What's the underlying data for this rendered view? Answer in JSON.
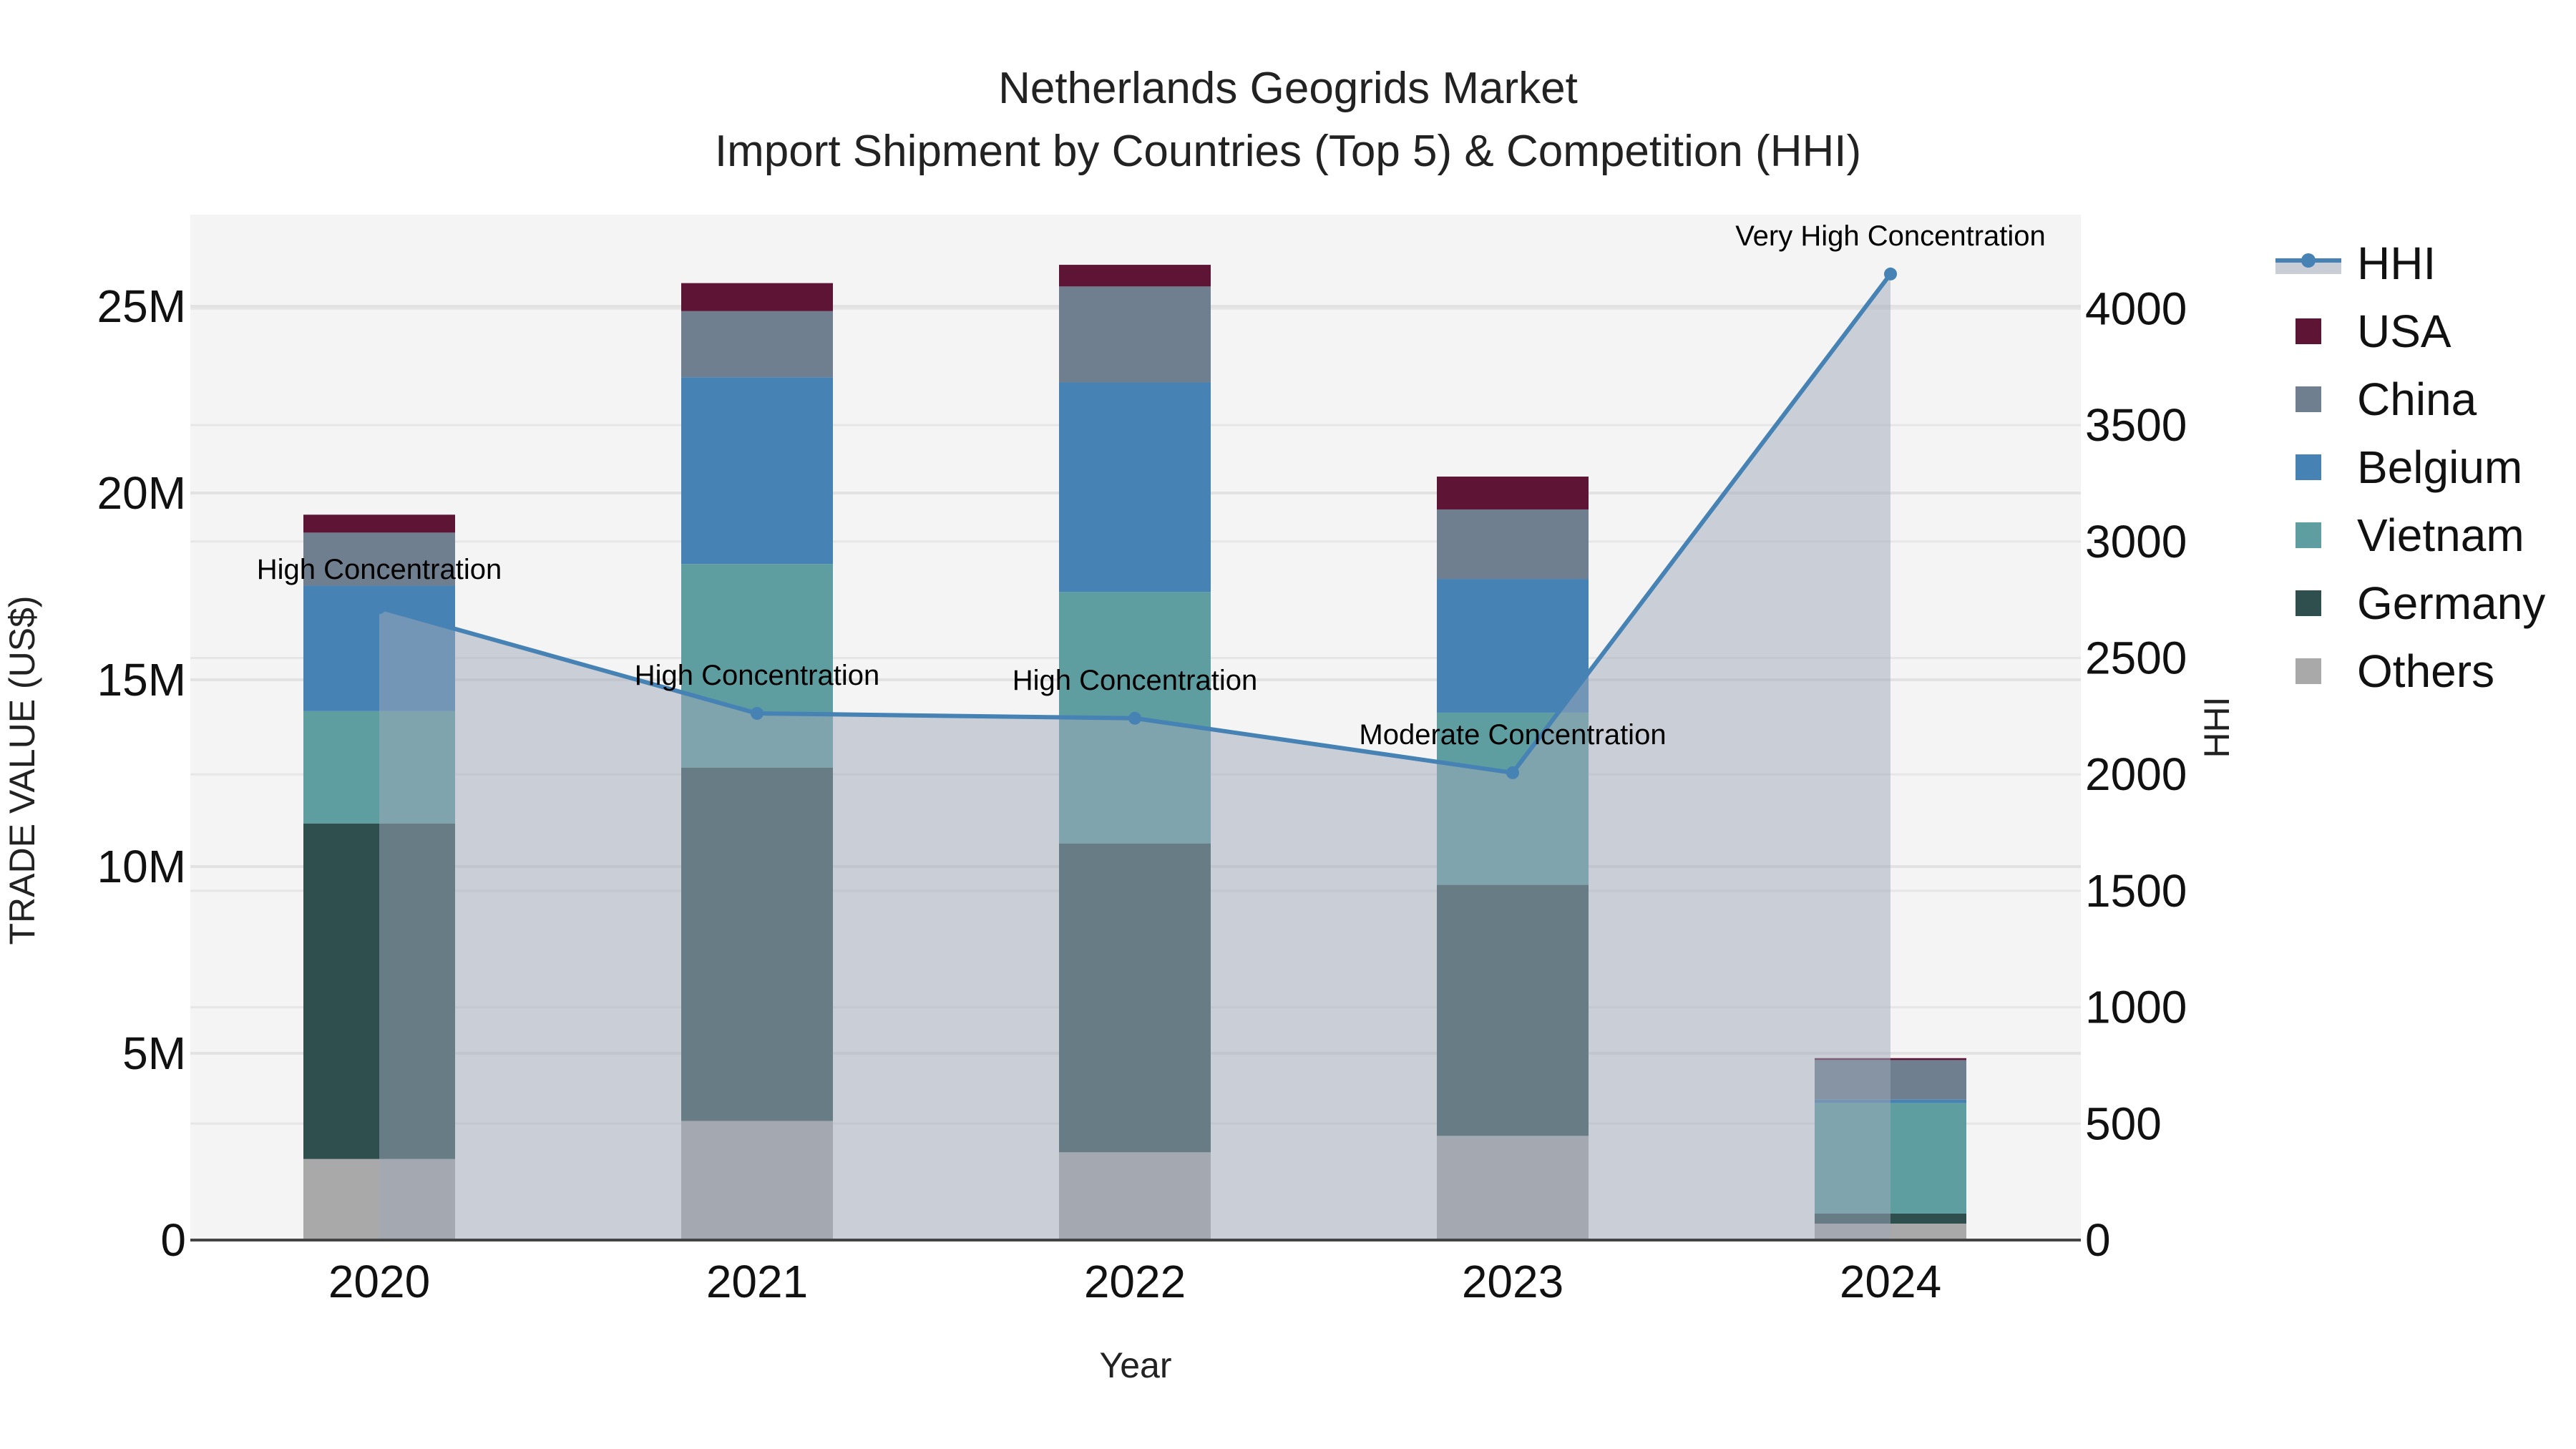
{
  "header": {
    "title_line1": "Netherlands Geogrids Market",
    "title_line2": "Import Shipment by Countries (Top 5) & Competition (HHI)"
  },
  "axes": {
    "x_label": "Year",
    "y_left_label": "TRADE VALUE (US$)",
    "y_right_label": "HHI",
    "y_left_ticks": [
      "0",
      "5M",
      "10M",
      "15M",
      "20M",
      "25M"
    ],
    "y_right_ticks": [
      "0",
      "500",
      "1000",
      "1500",
      "2000",
      "2500",
      "3000",
      "3500",
      "4000"
    ],
    "x_ticks": [
      "2020",
      "2021",
      "2022",
      "2023",
      "2024"
    ]
  },
  "legend": {
    "items": [
      {
        "label": "HHI",
        "color": "#4682B4",
        "type": "line"
      },
      {
        "label": "USA",
        "color": "#5E1535",
        "type": "bar"
      },
      {
        "label": "China",
        "color": "#6F7F8F",
        "type": "bar"
      },
      {
        "label": "Belgium",
        "color": "#4682B4",
        "type": "bar"
      },
      {
        "label": "Vietnam",
        "color": "#5F9EA0",
        "type": "bar"
      },
      {
        "label": "Germany",
        "color": "#2F4F4F",
        "type": "bar"
      },
      {
        "label": "Others",
        "color": "#A9A9A9",
        "type": "bar"
      }
    ]
  },
  "annotations": [
    {
      "year": "2020",
      "text": "High Concentration"
    },
    {
      "year": "2021",
      "text": "High Concentration"
    },
    {
      "year": "2022",
      "text": "High Concentration"
    },
    {
      "year": "2023",
      "text": "Moderate Concentration"
    },
    {
      "year": "2024",
      "text": "Very High Concentration"
    }
  ],
  "chart_data": {
    "type": "bar",
    "subtype": "stacked bar + line (secondary axis)",
    "title": "Netherlands Geogrids Market — Import Shipment by Countries (Top 5) & Competition (HHI)",
    "xlabel": "Year",
    "ylabel": "TRADE VALUE (US$)",
    "y2label": "HHI",
    "categories": [
      "2020",
      "2021",
      "2022",
      "2023",
      "2024"
    ],
    "ylim": [
      0,
      27500000
    ],
    "y2lim": [
      0,
      4400
    ],
    "grid": true,
    "legend_position": "right",
    "series": [
      {
        "name": "Others",
        "color": "#A9A9A9",
        "values": [
          2170000,
          3190000,
          2350000,
          2790000,
          440000
        ]
      },
      {
        "name": "Germany",
        "color": "#2F4F4F",
        "values": [
          8980000,
          9460000,
          8270000,
          6720000,
          270000
        ]
      },
      {
        "name": "Vietnam",
        "color": "#5F9EA0",
        "values": [
          3010000,
          5450000,
          6730000,
          4610000,
          2960000
        ]
      },
      {
        "name": "Belgium",
        "color": "#4682B4",
        "values": [
          3360000,
          5000000,
          5610000,
          3580000,
          90000
        ]
      },
      {
        "name": "China",
        "color": "#6F7F8F",
        "values": [
          1420000,
          1770000,
          2570000,
          1860000,
          1060000
        ]
      },
      {
        "name": "USA",
        "color": "#5E1535",
        "values": [
          480000,
          750000,
          580000,
          880000,
          50000
        ]
      }
    ],
    "line_series": {
      "name": "HHI",
      "axis": "right",
      "color": "#4682B4",
      "fill": "tozeroy",
      "values": [
        2716,
        2262,
        2241,
        2007,
        4149
      ],
      "labels": [
        "High Concentration",
        "High Concentration",
        "High Concentration",
        "Moderate Concentration",
        "Very High Concentration"
      ]
    }
  }
}
